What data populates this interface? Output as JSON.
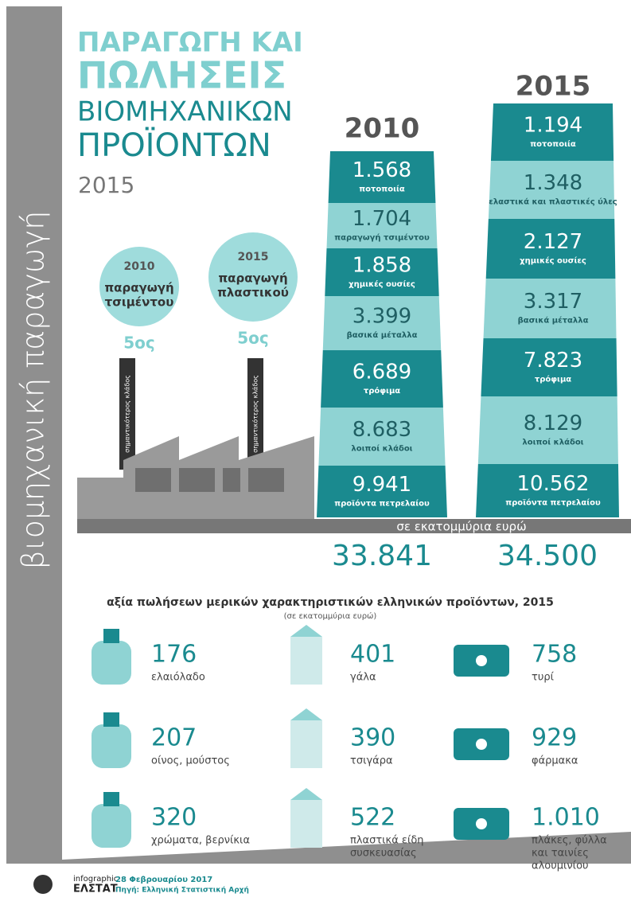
{
  "sidebar": "βιομηχανική παραγωγή",
  "header": {
    "title_lines": [
      "ΠΑΡΑΓΩΓΗ ΚΑΙ",
      "ΠΩΛΗΣΕΙΣ",
      "ΒΙΟΜΗΧΑΝΙΚΩΝ",
      "ΠΡΟΪΟΝΤΩΝ"
    ],
    "year": "2015"
  },
  "circles": [
    {
      "year": "2010",
      "label_lines": [
        "παραγωγή",
        "τσιμέντου"
      ],
      "rank": "5ος",
      "chimney": "σημαντικότερος κλάδος"
    },
    {
      "year": "2015",
      "label_lines": [
        "παραγωγή",
        "πλαστικού"
      ],
      "rank": "5ος",
      "chimney": "σημαντικότερος κλάδος"
    }
  ],
  "columns": [
    {
      "year": "2010",
      "total": "33.841",
      "segments": [
        {
          "value": "1.568",
          "label": "ποτοποιία"
        },
        {
          "value": "1.704",
          "label": "παραγωγή τσιμέντου"
        },
        {
          "value": "1.858",
          "label": "χημικές ουσίες"
        },
        {
          "value": "3.399",
          "label": "βασικά μέταλλα"
        },
        {
          "value": "6.689",
          "label": "τρόφιμα"
        },
        {
          "value": "8.683",
          "label": "λοιποί κλάδοι"
        },
        {
          "value": "9.941",
          "label": "προϊόντα πετρελαίου"
        }
      ]
    },
    {
      "year": "2015",
      "total": "34.500",
      "segments": [
        {
          "value": "1.194",
          "label": "ποτοποιία"
        },
        {
          "value": "1.348",
          "label": "ελαστικά και πλαστικές ύλες"
        },
        {
          "value": "2.127",
          "label": "χημικές ουσίες"
        },
        {
          "value": "3.317",
          "label": "βασικά μέταλλα"
        },
        {
          "value": "7.823",
          "label": "τρόφιμα"
        },
        {
          "value": "8.129",
          "label": "λοιποί κλάδοι"
        },
        {
          "value": "10.562",
          "label": "προϊόντα πετρελαίου"
        }
      ]
    }
  ],
  "unit": "σε εκατομμύρια ευρώ",
  "sales": {
    "title": "αξία πωλήσεων μερικών χαρακτηριστικών ελληνικών προϊόντων, 2015",
    "subtitle": "(σε εκατομμύρια ευρώ)",
    "items": [
      {
        "value": "176",
        "label_lines": [
          "ελαιόλαδο"
        ]
      },
      {
        "value": "401",
        "label_lines": [
          "γάλα"
        ]
      },
      {
        "value": "758",
        "label_lines": [
          "τυρί"
        ]
      },
      {
        "value": "207",
        "label_lines": [
          "οίνος, μούστος"
        ]
      },
      {
        "value": "390",
        "label_lines": [
          "τσιγάρα"
        ]
      },
      {
        "value": "929",
        "label_lines": [
          "φάρμακα"
        ]
      },
      {
        "value": "320",
        "label_lines": [
          "χρώματα, βερνίκια"
        ]
      },
      {
        "value": "522",
        "label_lines": [
          "πλαστικά είδη",
          "συσκευασίας"
        ]
      },
      {
        "value": "1.010",
        "label_lines": [
          "πλάκες, φύλλα",
          "και ταινίες",
          "αλουμινίου"
        ]
      }
    ]
  },
  "footer": {
    "brand_small": "infographic",
    "brand": "ΕΛΣΤΑΤ",
    "date": "28 Φεβρουαρίου 2017",
    "source": "Πηγή: Ελληνική Στατιστική Αρχή"
  }
}
